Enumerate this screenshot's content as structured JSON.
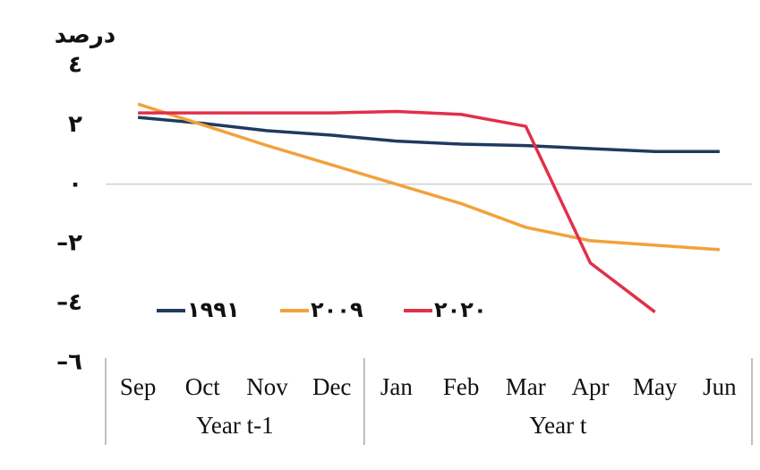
{
  "chart_data": {
    "type": "line",
    "y_label": "درصد",
    "categories": [
      "Sep",
      "Oct",
      "Nov",
      "Dec",
      "Jan",
      "Feb",
      "Mar",
      "Apr",
      "May",
      "Jun"
    ],
    "category_groups": [
      {
        "label": "Year t-1",
        "count": 4
      },
      {
        "label": "Year t",
        "count": 6
      }
    ],
    "ylim": [
      -6,
      4
    ],
    "yticks": [
      {
        "value": 4,
        "label": "٤"
      },
      {
        "value": 2,
        "label": "٢"
      },
      {
        "value": 0,
        "label": "٠"
      },
      {
        "value": -2,
        "label": "–٢"
      },
      {
        "value": -4,
        "label": "–٤"
      },
      {
        "value": -6,
        "label": "–٦"
      }
    ],
    "zero_line": true,
    "series": [
      {
        "name": "۱۹۹۱",
        "color": "#1f3b5e",
        "values": [
          2.25,
          2.05,
          1.8,
          1.65,
          1.45,
          1.35,
          1.3,
          1.2,
          1.1,
          1.1
        ]
      },
      {
        "name": "۲۰۰۹",
        "color": "#f2a23a",
        "values": [
          2.7,
          2.0,
          1.3,
          0.65,
          0,
          -0.65,
          -1.45,
          -1.9,
          -2.05,
          -2.2
        ]
      },
      {
        "name": "۲۰۲۰",
        "color": "#e0304a",
        "values": [
          2.4,
          2.4,
          2.4,
          2.4,
          2.45,
          2.35,
          1.95,
          -2.65,
          -4.3,
          null
        ]
      }
    ]
  }
}
